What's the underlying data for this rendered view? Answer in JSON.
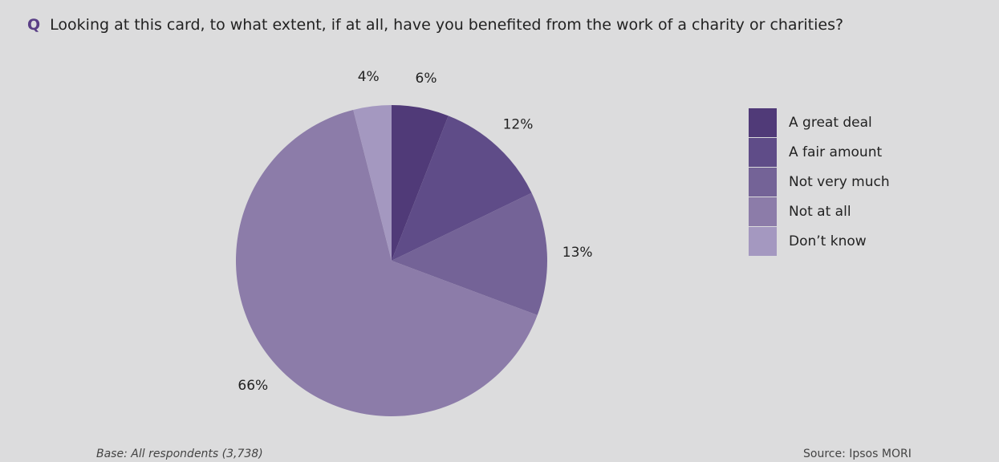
{
  "question": {
    "marker": "Q",
    "text": "Looking at this card, to what extent, if at all, have you benefited from the work of a charity or charities?"
  },
  "chart_data": {
    "type": "pie",
    "title": "",
    "slices": [
      {
        "label": "A great deal",
        "value": 6,
        "display": "6%",
        "color": "#503a78"
      },
      {
        "label": "A fair amount",
        "value": 12,
        "display": "12%",
        "color": "#5f4c88"
      },
      {
        "label": "Not very much",
        "value": 13,
        "display": "13%",
        "color": "#746397"
      },
      {
        "label": "Not at all",
        "value": 66,
        "display": "66%",
        "color": "#8c7ca9"
      },
      {
        "label": "Don’t know",
        "value": 4,
        "display": "4%",
        "color": "#a498c0"
      }
    ],
    "legend_position": "right"
  },
  "footer": {
    "base": "Base: All respondents (3,738)",
    "source": "Source: Ipsos MORI"
  }
}
